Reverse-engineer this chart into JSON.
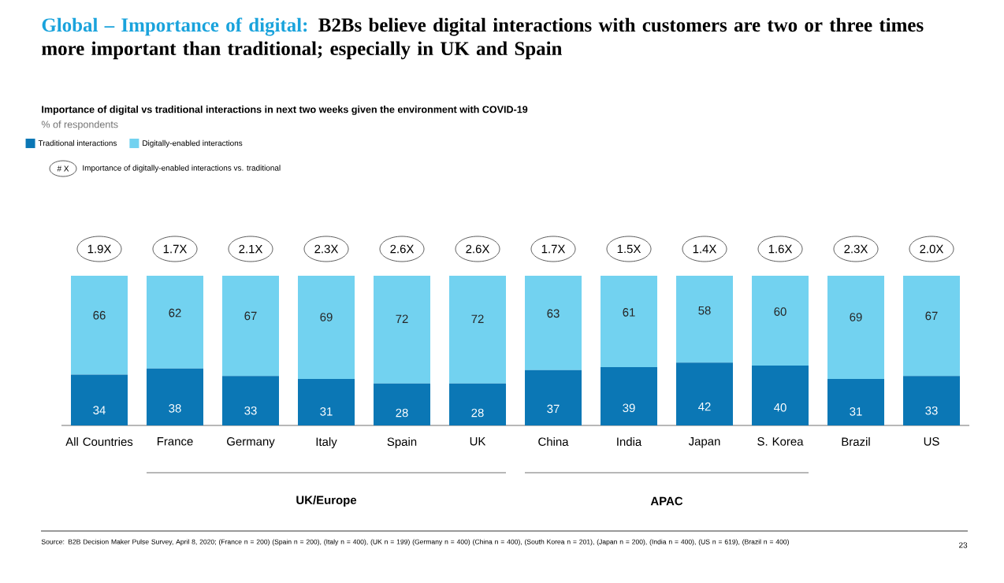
{
  "chart_data": {
    "type": "bar",
    "stacked": true,
    "data_labels": true,
    "legend": "top left",
    "title": "Global – Importance of digital:",
    "subtitle": "B2Bs believe digital interactions with customers are two or three times more important than traditional; especially in UK and Spain",
    "categories": [
      "All Countries",
      "France",
      "Germany",
      "Italy",
      "Spain",
      "UK",
      "China",
      "India",
      "Japan",
      "S. Korea",
      "Brazil",
      "US"
    ],
    "series": [
      {
        "name": "Traditional interactions",
        "color": "#0b77b5",
        "values": [
          34,
          38,
          33,
          31,
          28,
          28,
          37,
          39,
          42,
          40,
          31,
          33
        ]
      },
      {
        "name": "Digitally-enabled interactions",
        "color": "#72d2f0",
        "values": [
          66,
          62,
          67,
          69,
          72,
          72,
          63,
          61,
          58,
          60,
          69,
          67
        ]
      }
    ],
    "annotations": [
      "Importance of digital vs traditional interactions in next two weeks given the environment with COVID-19",
      "% of respondents",
      "# X",
      "Importance of digitally-enabled interactions vs. traditional",
      "UK/Europe",
      "APAC",
      "Source: B2B Decision Maker Pulse Survey, April 8, 2020; (France n = 200) (Spain n = 200), (Italy n = 400), (UK n = 199) (Germany n = 400) (China n = 400), (South Korea n = 201), (Japan n = 200), (India n = 400), (US n = 619), (Brazil n = 400)",
      "23",
      "1.9X",
      "1.7X",
      "2.1X",
      "2.3X",
      "2.6X",
      "2.6X",
      "1.7X",
      "1.5X",
      "1.4X",
      "1.6X",
      "2.3X",
      "2.0X"
    ]
  }
}
